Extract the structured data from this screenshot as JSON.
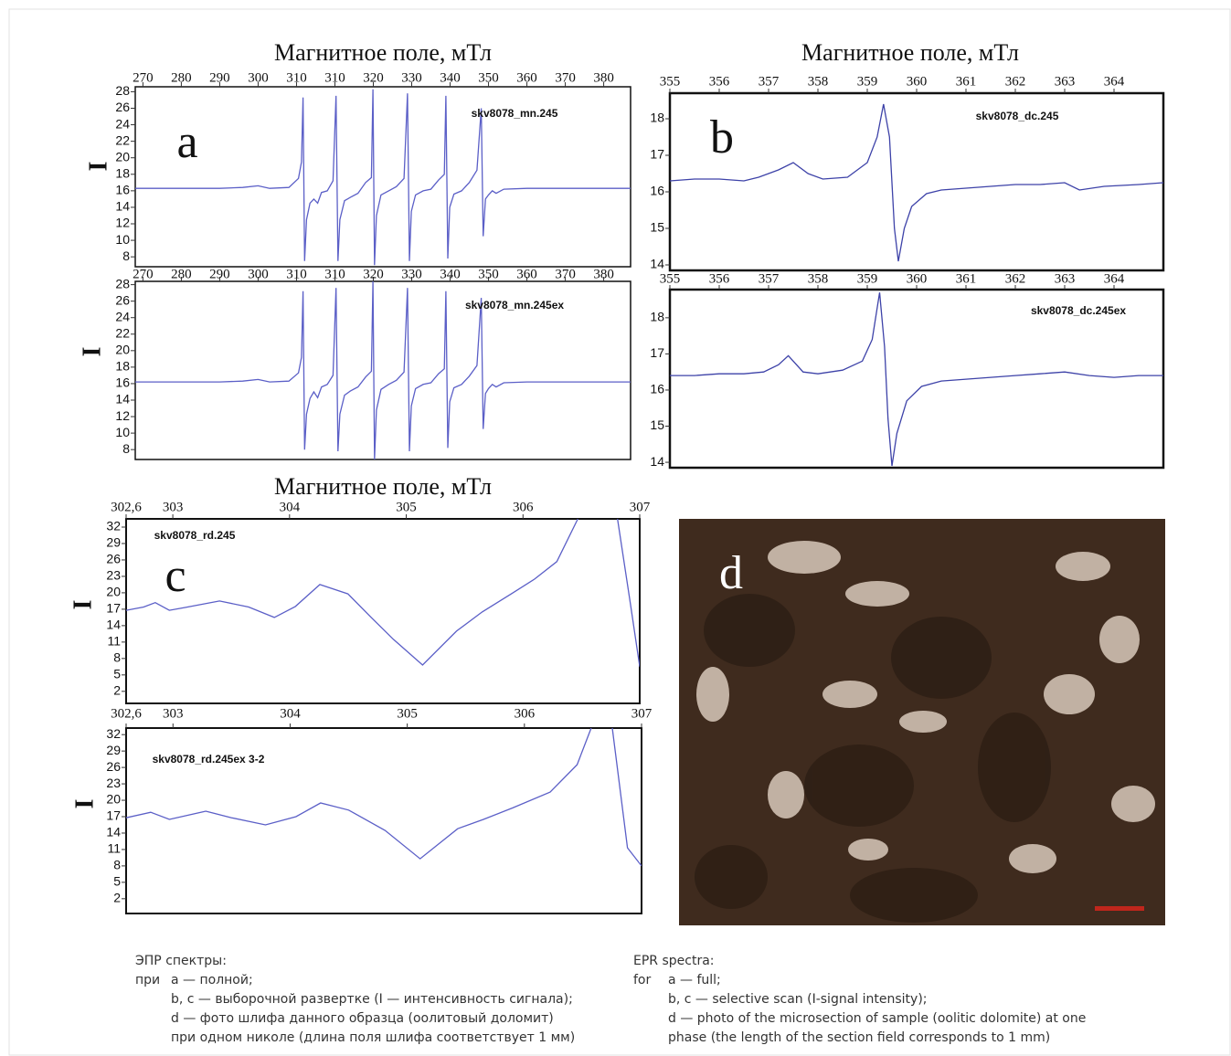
{
  "chart_data": [
    {
      "type": "line",
      "title": "Магнитное поле, мТл",
      "panel_label": "a",
      "y_label": "I",
      "xlim": [
        268,
        397
      ],
      "ylim": [
        6.8,
        28.6
      ],
      "xticks": [
        270,
        280,
        290,
        300,
        310,
        {
          "value": 320,
          "label": "310"
        },
        {
          "value": 330,
          "label": "320"
        },
        {
          "value": 340,
          "label": "330"
        },
        {
          "value": 350,
          "label": "340"
        },
        {
          "value": 360,
          "label": "350"
        },
        {
          "value": 370,
          "label": "360"
        },
        {
          "value": 380,
          "label": "370"
        },
        {
          "value": 390,
          "label": "380"
        }
      ],
      "yticks": [
        8,
        10,
        12,
        14,
        16,
        18,
        20,
        22,
        24,
        26,
        28
      ],
      "x": [
        268,
        290,
        296,
        300,
        303,
        308,
        310.5,
        311.3,
        311.7,
        312.1,
        312.6,
        313.5,
        314.5,
        315.5,
        316.5,
        318,
        319.5,
        320.3,
        320.8,
        321.3,
        322.5,
        324,
        326,
        328,
        329.5,
        329.9,
        330.3,
        330.8,
        332,
        334,
        336,
        338,
        338.9,
        339.4,
        339.9,
        341,
        343,
        345,
        347,
        348.5,
        348.9,
        349.4,
        349.9,
        351,
        353,
        355,
        357,
        358.1,
        358.6,
        359.2,
        360,
        361,
        362,
        364,
        370,
        397
      ],
      "series": [
        {
          "name": "skv8078_mn.245",
          "color": "#5b5fc7",
          "values": [
            16.3,
            16.3,
            16.4,
            16.6,
            16.3,
            16.4,
            17.5,
            19.5,
            27.3,
            7.5,
            12.5,
            14.5,
            15,
            14.5,
            15.8,
            16,
            17.2,
            27.5,
            7.5,
            12.5,
            14.8,
            15.2,
            15.7,
            17,
            17.6,
            28.3,
            7,
            13,
            15.5,
            16,
            16.5,
            17.5,
            27.8,
            7.5,
            13.5,
            15.5,
            16,
            16.2,
            17.3,
            18,
            27.5,
            7.8,
            14,
            15.6,
            16,
            17,
            18.5,
            26,
            10.5,
            15,
            15.5,
            16,
            15.7,
            16.2,
            16.3,
            16.3
          ]
        }
      ]
    },
    {
      "type": "line",
      "y_label": "I",
      "xlim": [
        268,
        397
      ],
      "ylim": [
        6.8,
        28.4
      ],
      "xticks": [
        270,
        280,
        290,
        300,
        310,
        {
          "value": 320,
          "label": "310"
        },
        {
          "value": 330,
          "label": "320"
        },
        {
          "value": 340,
          "label": "330"
        },
        {
          "value": 350,
          "label": "340"
        },
        {
          "value": 360,
          "label": "350"
        },
        {
          "value": 370,
          "label": "360"
        },
        {
          "value": 380,
          "label": "370"
        },
        {
          "value": 390,
          "label": "380"
        }
      ],
      "yticks": [
        8,
        10,
        12,
        14,
        16,
        18,
        20,
        22,
        24,
        26,
        28
      ],
      "x": [
        268,
        290,
        296,
        300,
        303,
        308,
        310.5,
        311.3,
        311.7,
        312.1,
        312.6,
        313.5,
        314.5,
        315.5,
        316.5,
        318,
        319.5,
        320.3,
        320.8,
        321.3,
        322.5,
        324,
        326,
        328,
        329.5,
        329.9,
        330.3,
        330.8,
        332,
        334,
        336,
        338,
        338.9,
        339.4,
        339.9,
        341,
        343,
        345,
        347,
        348.5,
        348.9,
        349.4,
        349.9,
        351,
        353,
        355,
        357,
        358.1,
        358.6,
        359.2,
        360,
        361,
        362,
        364,
        370,
        397
      ],
      "series": [
        {
          "name": "skv8078_mn.245ex",
          "color": "#5b5fc7",
          "values": [
            16.2,
            16.2,
            16.3,
            16.5,
            16.2,
            16.3,
            17.3,
            19.2,
            27.2,
            8,
            12.3,
            14.2,
            15,
            14.3,
            15.6,
            15.9,
            17,
            27.6,
            7.8,
            12.3,
            14.6,
            15.1,
            15.6,
            16.8,
            17.5,
            28.4,
            6.8,
            12.8,
            15.3,
            15.9,
            16.4,
            17.4,
            27.6,
            7.8,
            13.3,
            15.4,
            15.9,
            16.1,
            17.2,
            17.8,
            27.2,
            8.2,
            13.8,
            15.5,
            15.9,
            16.9,
            18.2,
            26.4,
            10.5,
            14.8,
            15.4,
            15.9,
            15.6,
            16.1,
            16.2,
            16.2
          ]
        }
      ]
    },
    {
      "type": "line",
      "title": "Магнитное поле, мТл",
      "panel_label": "b",
      "xlim": [
        355,
        365
      ],
      "ylim": [
        13.85,
        18.7
      ],
      "xticks": [
        355,
        356,
        357,
        358,
        359,
        360,
        361,
        362,
        363,
        364
      ],
      "yticks": [
        14,
        15,
        16,
        17,
        18
      ],
      "x": [
        355,
        355.5,
        356,
        356.5,
        356.8,
        357.2,
        357.5,
        357.8,
        358.1,
        358.6,
        359,
        359.2,
        359.33,
        359.45,
        359.55,
        359.63,
        359.75,
        359.9,
        360.2,
        360.5,
        361,
        361.5,
        362,
        362.5,
        363,
        363.3,
        363.8,
        364.5,
        365
      ],
      "series": [
        {
          "name": "skv8078_dc.245",
          "color": "#3d42a8",
          "values": [
            16.3,
            16.35,
            16.35,
            16.3,
            16.4,
            16.6,
            16.8,
            16.5,
            16.35,
            16.4,
            16.8,
            17.5,
            18.4,
            17.5,
            15,
            14.1,
            15,
            15.6,
            15.95,
            16.05,
            16.1,
            16.15,
            16.2,
            16.2,
            16.25,
            16.05,
            16.15,
            16.2,
            16.25
          ]
        }
      ]
    },
    {
      "type": "line",
      "xlim": [
        355,
        365
      ],
      "ylim": [
        13.85,
        18.78
      ],
      "xticks": [
        355,
        356,
        357,
        358,
        359,
        360,
        361,
        362,
        363,
        364
      ],
      "yticks": [
        14,
        15,
        16,
        17,
        18
      ],
      "x": [
        355,
        355.5,
        356,
        356.5,
        356.9,
        357.2,
        357.4,
        357.7,
        358,
        358.5,
        358.9,
        359.1,
        359.25,
        359.35,
        359.42,
        359.5,
        359.6,
        359.8,
        360.1,
        360.5,
        361,
        361.5,
        362,
        362.5,
        363,
        363.5,
        364,
        364.5,
        365
      ],
      "series": [
        {
          "name": "skv8078_dc.245ex",
          "color": "#3d42a8",
          "values": [
            16.4,
            16.4,
            16.45,
            16.45,
            16.5,
            16.7,
            16.95,
            16.5,
            16.45,
            16.55,
            16.8,
            17.4,
            18.7,
            17.2,
            15.2,
            13.9,
            14.8,
            15.7,
            16.1,
            16.25,
            16.3,
            16.35,
            16.4,
            16.45,
            16.5,
            16.4,
            16.35,
            16.4,
            16.4
          ]
        }
      ]
    },
    {
      "type": "line",
      "title": "Магнитное поле, мТл",
      "panel_label": "c",
      "y_label": "I",
      "xlim": [
        302.6,
        307
      ],
      "ylim": [
        -0.2,
        33.5
      ],
      "xticks": [
        {
          "value": 302.6,
          "label": "302,6"
        },
        303,
        304,
        305,
        306,
        307
      ],
      "yticks": [
        2,
        5,
        8,
        11,
        14,
        17,
        20,
        23,
        26,
        29,
        32
      ],
      "x": [
        302.6,
        302.75,
        302.85,
        302.97,
        303.1,
        303.4,
        303.65,
        303.87,
        304.05,
        304.26,
        304.5,
        304.7,
        304.89,
        305.14,
        305.43,
        305.65,
        305.9,
        306.1,
        306.29,
        306.47,
        306.6,
        306.81,
        306.92,
        307
      ],
      "series": [
        {
          "name": "skv8078_rd.245",
          "color": "#5b5fc7",
          "values": [
            16.8,
            17.4,
            18.2,
            16.8,
            17.3,
            18.5,
            17.4,
            15.5,
            17.5,
            21.5,
            19.8,
            15.5,
            11.5,
            6.8,
            13,
            16.5,
            19.8,
            22.5,
            25.7,
            33.5,
            null,
            33.5,
            18,
            6.5
          ]
        }
      ]
    },
    {
      "type": "line",
      "y_label": "I",
      "xlim": [
        302.6,
        307
      ],
      "ylim": [
        -0.7,
        33.2
      ],
      "xticks": [
        {
          "value": 302.6,
          "label": "302,6"
        },
        303,
        304,
        305,
        306,
        307
      ],
      "yticks": [
        2,
        5,
        8,
        11,
        14,
        17,
        20,
        23,
        26,
        29,
        32
      ],
      "x": [
        302.6,
        302.81,
        302.97,
        303.28,
        303.5,
        303.79,
        304.05,
        304.26,
        304.5,
        304.81,
        305.11,
        305.43,
        305.65,
        305.9,
        306.22,
        306.45,
        306.57,
        306.6,
        306.75,
        306.88,
        307
      ],
      "series": [
        {
          "name": "skv8078_rd.245ex 3-2",
          "color": "#5b5fc7",
          "values": [
            16.8,
            17.8,
            16.5,
            18,
            16.8,
            15.5,
            17,
            19.5,
            18.2,
            14.5,
            9.3,
            14.8,
            16.5,
            18.6,
            21.5,
            26.5,
            33.2,
            null,
            33.2,
            11.3,
            8
          ]
        }
      ]
    }
  ],
  "photo": {
    "panel_label": "d"
  },
  "caption": {
    "ru": {
      "heading": "ЭПР спектры:",
      "prefix": "при",
      "lines": [
        "а — полной;",
        "b, c — выборочной развертке (I — интенсивность сигнала);",
        "d — фото шлифа данного образца (оолитовый доломит)",
        "при одном николе (длина поля шлифа соответствует 1 мм)"
      ]
    },
    "en": {
      "heading": "EPR spectra:",
      "prefix": "for",
      "lines": [
        "a — full;",
        "b, c — selective scan (I-signal intensity);",
        "d — photo of the microsection of sample (oolitic dolomite) at one",
        "phase (the length of the section field corresponds to 1 mm)"
      ]
    }
  }
}
